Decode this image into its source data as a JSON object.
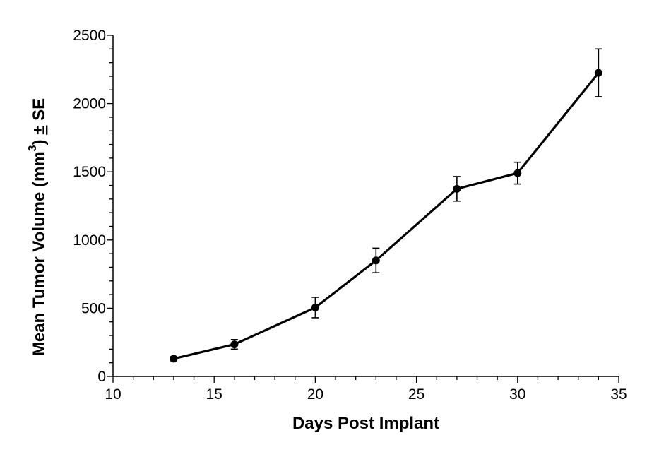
{
  "chart_data": {
    "type": "line",
    "xlabel": "Days Post Implant",
    "ylabel": {
      "main": "Mean Tumor Volume (mm",
      "sup": "3",
      "after": ") ",
      "pm": "±",
      "tail": " SE"
    },
    "xlim": [
      10,
      35
    ],
    "ylim": [
      0,
      2500
    ],
    "xticks": [
      10,
      15,
      20,
      25,
      30,
      35
    ],
    "xticks_minor_step": 1,
    "yticks": [
      0,
      500,
      1000,
      1500,
      2000,
      2500
    ],
    "yticks_minor_step": 100,
    "grid": false,
    "legend": "none",
    "series": [
      {
        "color": "#000000",
        "marker": "circle",
        "x": [
          13,
          16,
          20,
          23,
          27,
          30,
          34
        ],
        "y": [
          130,
          235,
          505,
          850,
          1375,
          1490,
          2225
        ],
        "error": [
          15,
          35,
          75,
          90,
          90,
          80,
          175
        ]
      }
    ]
  }
}
